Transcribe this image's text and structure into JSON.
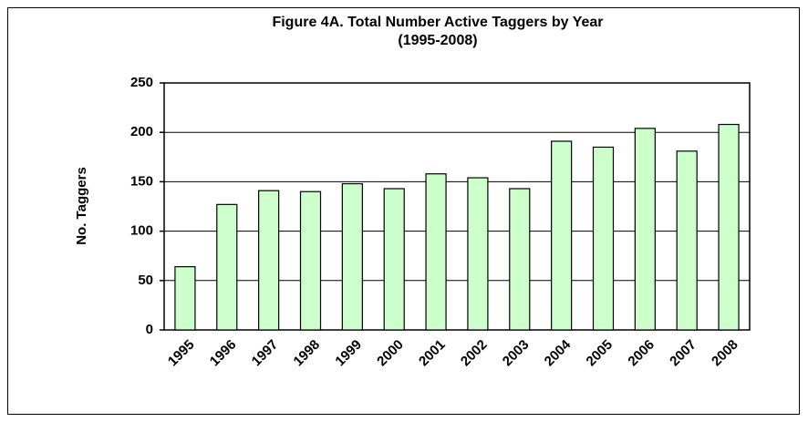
{
  "chart_data": {
    "type": "bar",
    "title": "Figure 4A. Total Number Active Taggers by Year",
    "subtitle": "(1995-2008)",
    "y_label": "No. Taggers",
    "categories": [
      "1995",
      "1996",
      "1997",
      "1998",
      "1999",
      "2000",
      "2001",
      "2002",
      "2003",
      "2004",
      "2005",
      "2006",
      "2007",
      "2008"
    ],
    "values": [
      64,
      127,
      141,
      140,
      148,
      143,
      158,
      154,
      143,
      191,
      185,
      204,
      181,
      208
    ],
    "color": "#ccffcc",
    "ylim": [
      0,
      250
    ],
    "yticks": [
      0,
      50,
      100,
      150,
      200,
      250
    ],
    "grid": true
  }
}
